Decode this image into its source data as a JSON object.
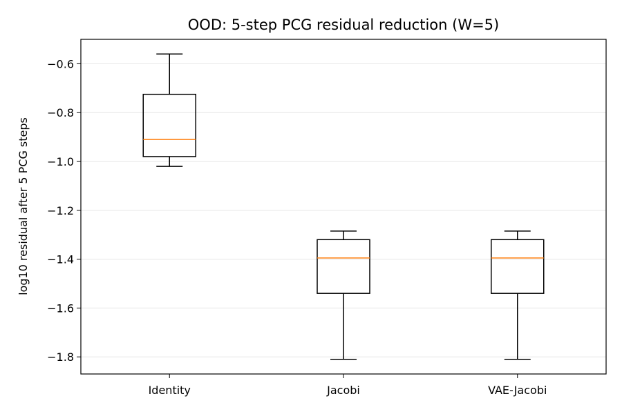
{
  "chart_data": {
    "type": "box",
    "title": "OOD: 5-step PCG residual reduction (W=5)",
    "xlabel": "",
    "ylabel": "log10 residual after 5 PCG steps",
    "ylim": [
      -1.87,
      -0.5
    ],
    "yticks": [
      -0.6,
      -0.8,
      -1.0,
      -1.2,
      -1.4,
      -1.6,
      -1.8
    ],
    "ytick_labels": [
      "−0.6",
      "−0.8",
      "−1.0",
      "−1.2",
      "−1.4",
      "−1.6",
      "−1.8"
    ],
    "grid": "y",
    "categories": [
      "Identity",
      "Jacobi",
      "VAE-Jacobi"
    ],
    "boxes": [
      {
        "whisker_low": -1.02,
        "q1": -0.98,
        "median": -0.91,
        "q3": -0.725,
        "whisker_high": -0.56
      },
      {
        "whisker_low": -1.81,
        "q1": -1.54,
        "median": -1.395,
        "q3": -1.32,
        "whisker_high": -1.285
      },
      {
        "whisker_low": -1.81,
        "q1": -1.54,
        "median": -1.395,
        "q3": -1.32,
        "whisker_high": -1.285
      }
    ],
    "colors": {
      "box": "#000000",
      "median": "#ff7f0e",
      "grid": "#e6e6e6"
    }
  }
}
